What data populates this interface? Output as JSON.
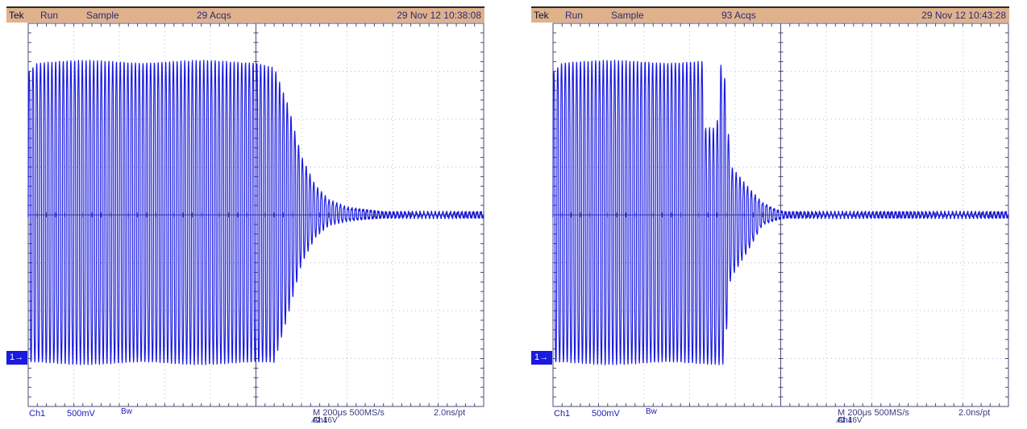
{
  "colors": {
    "trace": "#1a1ae0",
    "status_bar": "#e0b28c",
    "grid": "#b8b8d8",
    "axis": "#4a4a7a"
  },
  "scopes": [
    {
      "status": {
        "brand": "Tek",
        "mode": "Run",
        "acquisition": "Sample",
        "acqs": "29 Acqs",
        "datetime": "29 Nov 12 10:38:08"
      },
      "channel_marker": "1→",
      "bottom": {
        "channel": "Ch1",
        "volts_per_div": "500mV",
        "bw": "Bw",
        "timebase": "M 200μs 500MS/s",
        "resolution": "2.0ns/pt",
        "trigger_prefix": "A",
        "trigger_channel": "Ch1",
        "trigger_level": "∕ 1.46V"
      }
    },
    {
      "status": {
        "brand": "Tek",
        "mode": "Run",
        "acquisition": "Sample",
        "acqs": "93 Acqs",
        "datetime": "29 Nov 12 10:43:28"
      },
      "channel_marker": "1→",
      "bottom": {
        "channel": "Ch1",
        "volts_per_div": "500mV",
        "bw": "Bw",
        "timebase": "M 200μs 500MS/s",
        "resolution": "2.0ns/pt",
        "trigger_prefix": "A",
        "trigger_channel": "Ch1",
        "trigger_level": "∕ 1.46V"
      }
    }
  ],
  "chart_data": [
    {
      "type": "line",
      "xlabel": "",
      "ylabel": "",
      "xlim": [
        0,
        10
      ],
      "ylim": [
        -4,
        4
      ],
      "x_divisions": 10,
      "y_divisions": 8,
      "grid": true,
      "series": [
        {
          "envelope": {
            "x": [
              0,
              0.2,
              5.0,
              5.4,
              5.7,
              6.0,
              6.3,
              6.6,
              7.0,
              7.4,
              7.8,
              8.2,
              10
            ],
            "upper": [
              3.0,
              3.2,
              3.2,
              3.1,
              2.3,
              1.2,
              0.6,
              0.3,
              0.15,
              0.1,
              0.05,
              0.05,
              0.05
            ],
            "lower": [
              -3.1,
              -3.1,
              -3.1,
              -3.1,
              -2.1,
              -1.0,
              -0.45,
              -0.2,
              -0.12,
              -0.08,
              -0.05,
              -0.05,
              -0.05
            ]
          }
        }
      ]
    },
    {
      "type": "line",
      "xlabel": "",
      "ylabel": "",
      "xlim": [
        0,
        10
      ],
      "ylim": [
        -4,
        4
      ],
      "x_divisions": 10,
      "y_divisions": 8,
      "grid": true,
      "series": [
        {
          "envelope": {
            "x": [
              0,
              0.2,
              3.3,
              3.35,
              3.6,
              3.65,
              3.75,
              3.9,
              4.3,
              4.6,
              4.9,
              5.1,
              10
            ],
            "upper": [
              3.0,
              3.2,
              3.2,
              1.8,
              1.8,
              3.1,
              3.1,
              1.0,
              0.55,
              0.25,
              0.1,
              0.05,
              0.05
            ],
            "lower": [
              -3.1,
              -3.1,
              -3.1,
              -3.1,
              -3.1,
              -3.1,
              -3.1,
              -1.3,
              -0.7,
              -0.2,
              -0.1,
              -0.05,
              -0.05
            ]
          }
        }
      ]
    }
  ]
}
